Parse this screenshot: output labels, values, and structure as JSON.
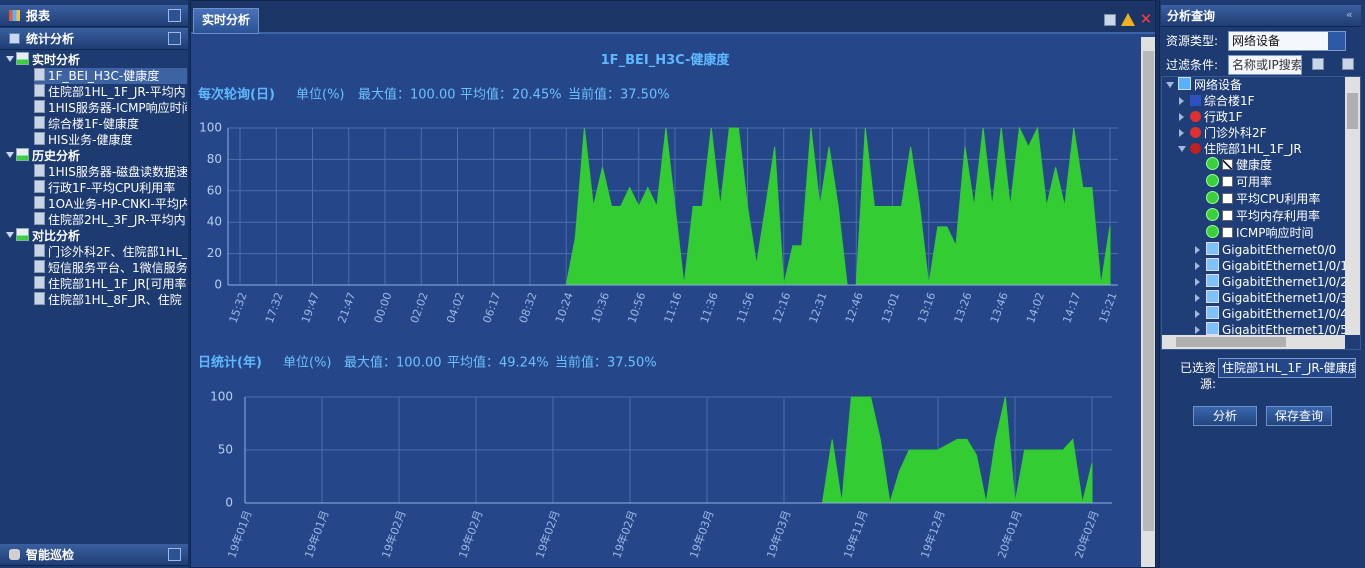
{
  "left_panel": {
    "report": "报表",
    "stats": "统计分析",
    "groups": [
      {
        "title": "实时分析",
        "items": [
          "1F_BEI_H3C-健康度",
          "住院部1HL_1F_JR-平均内",
          "1HIS服务器-ICMP响应时间",
          "综合楼1F-健康度",
          "HIS业务-健康度"
        ]
      },
      {
        "title": "历史分析",
        "items": [
          "1HIS服务器-磁盘读数据速",
          "行政1F-平均CPU利用率",
          "1OA业务-HP-CNKI-平均内",
          "住院部2HL_3F_JR-平均内"
        ]
      },
      {
        "title": "对比分析",
        "items": [
          "门诊外科2F、住院部1HL_",
          "短信服务平台、1微信服务",
          "住院部1HL_1F_JR[可用率",
          "住院部1HL_8F_JR、住院"
        ]
      }
    ],
    "inspection": "智能巡检"
  },
  "tab": "实时分析",
  "chart_title": "1F_BEI_H3C-健康度",
  "chart_data": [
    {
      "type": "area",
      "title": "每次轮询(日)",
      "stats": [
        "单位(%)",
        "最大值：100.00",
        "平均值：20.45%",
        "当前值：37.50%"
      ],
      "color": "#33cc33",
      "categories": [
        "15:32",
        null,
        null,
        null,
        "17:32",
        null,
        null,
        null,
        "19:47",
        null,
        null,
        null,
        "21:47",
        null,
        null,
        null,
        "00:00",
        null,
        null,
        null,
        "02:02",
        null,
        null,
        null,
        "04:02",
        null,
        null,
        null,
        "06:17",
        null,
        null,
        null,
        "08:32",
        null,
        null,
        null,
        "10:24",
        null,
        null,
        null,
        "10:36",
        null,
        null,
        null,
        "10:56",
        null,
        null,
        null,
        "11:16",
        null,
        null,
        null,
        "11:36",
        null,
        null,
        null,
        "11:56",
        null,
        null,
        null,
        "12:16",
        null,
        null,
        null,
        "12:31",
        null,
        null,
        null,
        "12:46",
        null,
        null,
        null,
        "13:01",
        null,
        null,
        null,
        "13:16",
        null,
        null,
        null,
        "13:26",
        null,
        null,
        null,
        "13:46",
        null,
        null,
        null,
        "14:02",
        null,
        null,
        null,
        "14:17",
        null,
        null,
        null,
        "15:21"
      ],
      "values": [
        0,
        0,
        0,
        0,
        0,
        0,
        0,
        0,
        0,
        0,
        0,
        0,
        0,
        0,
        0,
        0,
        0,
        0,
        0,
        0,
        0,
        0,
        0,
        0,
        0,
        0,
        0,
        0,
        0,
        0,
        0,
        0,
        0,
        0,
        0,
        0,
        0,
        30,
        100,
        50,
        75,
        50,
        50,
        62,
        50,
        62,
        50,
        100,
        50,
        0,
        50,
        50,
        100,
        50,
        100,
        100,
        50,
        13,
        50,
        88,
        0,
        25,
        25,
        100,
        50,
        88,
        50,
        0,
        0,
        100,
        50,
        50,
        50,
        50,
        88,
        50,
        0,
        37,
        37,
        25,
        88,
        50,
        100,
        50,
        100,
        50,
        100,
        88,
        100,
        50,
        75,
        50,
        100,
        62,
        62,
        0,
        37.5
      ],
      "ylim": [
        0,
        100
      ],
      "yticks": [
        0,
        20,
        40,
        60,
        80,
        100
      ],
      "grid": true
    },
    {
      "type": "area",
      "title": "日统计(年)",
      "stats": [
        "单位(%)",
        "最大值：100.00",
        "平均值：49.24%",
        "当前值：37.50%"
      ],
      "color": "#33cc33",
      "categories": [
        "19年01月",
        null,
        null,
        null,
        null,
        null,
        null,
        null,
        "19年01月",
        null,
        null,
        null,
        null,
        null,
        null,
        null,
        "19年02月",
        null,
        null,
        null,
        null,
        null,
        null,
        null,
        "19年02月",
        null,
        null,
        null,
        null,
        null,
        null,
        null,
        "19年02月",
        null,
        null,
        null,
        null,
        null,
        null,
        null,
        "19年02月",
        null,
        null,
        null,
        null,
        null,
        null,
        null,
        "19年03月",
        null,
        null,
        null,
        null,
        null,
        null,
        null,
        "19年03月",
        null,
        null,
        null,
        null,
        null,
        null,
        null,
        "19年11月",
        null,
        null,
        null,
        null,
        null,
        null,
        null,
        "19年12月",
        null,
        null,
        null,
        null,
        null,
        null,
        null,
        "20年01月",
        null,
        null,
        null,
        null,
        null,
        null,
        null,
        "20年02月"
      ],
      "values": [
        0,
        0,
        0,
        0,
        0,
        0,
        0,
        0,
        0,
        0,
        0,
        0,
        0,
        0,
        0,
        0,
        0,
        0,
        0,
        0,
        0,
        0,
        0,
        0,
        0,
        0,
        0,
        0,
        0,
        0,
        0,
        0,
        0,
        0,
        0,
        0,
        0,
        0,
        0,
        0,
        0,
        0,
        0,
        0,
        0,
        0,
        0,
        0,
        0,
        0,
        0,
        0,
        0,
        0,
        0,
        0,
        0,
        0,
        0,
        0,
        0,
        60,
        0,
        100,
        100,
        100,
        60,
        0,
        30,
        50,
        50,
        50,
        50,
        55,
        60,
        60,
        45,
        0,
        60,
        100,
        0,
        50,
        50,
        50,
        50,
        50,
        60,
        0,
        37.5
      ],
      "ylim": [
        0,
        100
      ],
      "yticks": [
        0,
        50,
        100
      ],
      "grid": true
    }
  ],
  "right_panel": {
    "title": "分析查询",
    "resource_type_label": "资源类型:",
    "resource_type": "网络设备",
    "filter_label": "过滤条件:",
    "filter_placeholder": "名称或IP搜索",
    "tree": {
      "root": "网络设备",
      "nodes": [
        "综合楼1F",
        "行政1F",
        "门诊外科2F",
        "住院部1HL_1F_JR"
      ],
      "metrics": [
        {
          "label": "健康度",
          "checked": true
        },
        {
          "label": "可用率",
          "checked": false
        },
        {
          "label": "平均CPU利用率",
          "checked": false
        },
        {
          "label": "平均内存利用率",
          "checked": false
        },
        {
          "label": "ICMP响应时间",
          "checked": false
        }
      ],
      "interfaces": [
        "GigabitEthernet0/0",
        "GigabitEthernet1/0/1",
        "GigabitEthernet1/0/2",
        "GigabitEthernet1/0/3",
        "GigabitEthernet1/0/4",
        "GigabitEthernet1/0/5"
      ]
    },
    "selected_label": "已选资源:",
    "selected": "住院部1HL_1F_JR-健康度",
    "buttons": [
      "分析",
      "保存查询"
    ]
  }
}
